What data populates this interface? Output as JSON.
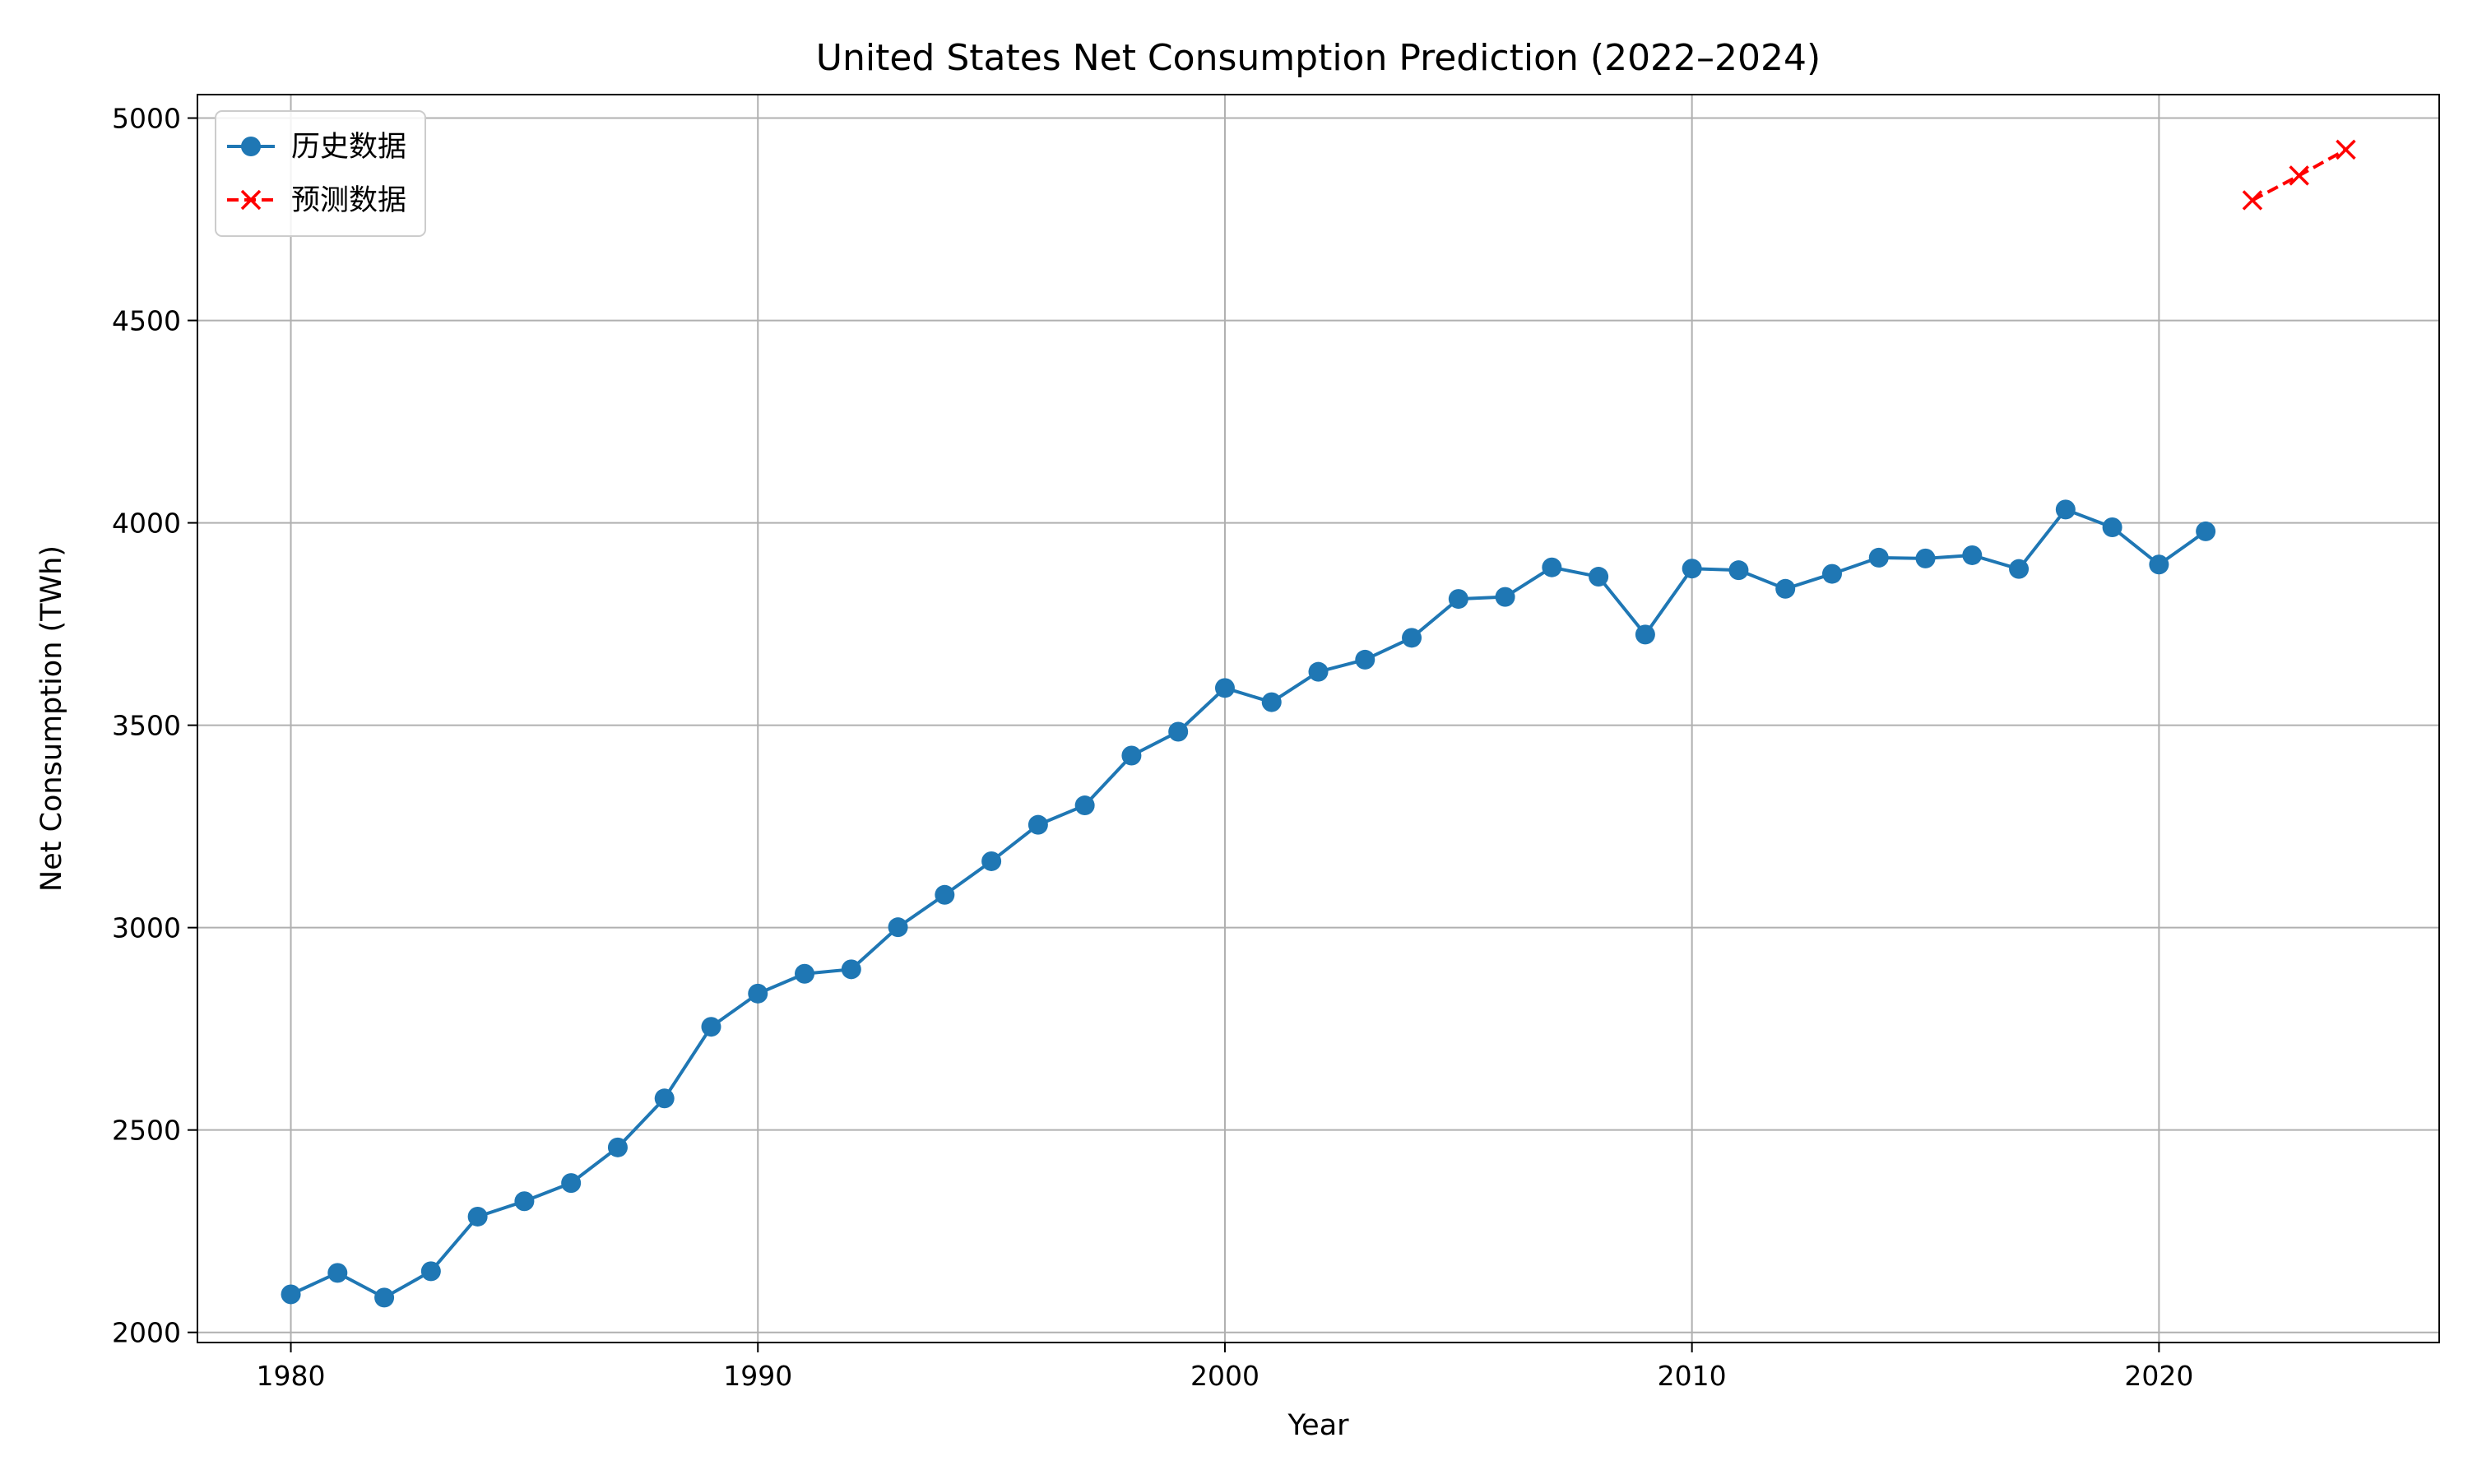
{
  "chart_data": {
    "type": "line",
    "title": "United States Net Consumption Prediction (2022–2024)",
    "xlabel": "Year",
    "ylabel": "Net Consumption (TWh)",
    "xlim": [
      1978,
      2026
    ],
    "ylim": [
      1975,
      5058
    ],
    "xticks": [
      1980,
      1990,
      2000,
      2010,
      2020
    ],
    "yticks": [
      2000,
      2500,
      3000,
      3500,
      4000,
      4500,
      5000
    ],
    "grid": true,
    "legend_position": "upper-left",
    "series": [
      {
        "name": "历史数据",
        "color": "#1f77b4",
        "marker": "circle",
        "line_style": "solid",
        "x": [
          1980,
          1981,
          1982,
          1983,
          1984,
          1985,
          1986,
          1987,
          1988,
          1989,
          1990,
          1991,
          1992,
          1993,
          1994,
          1995,
          1996,
          1997,
          1998,
          1999,
          2000,
          2001,
          2002,
          2003,
          2004,
          2005,
          2006,
          2007,
          2008,
          2009,
          2010,
          2011,
          2012,
          2013,
          2014,
          2015,
          2016,
          2017,
          2018,
          2019,
          2020,
          2021
        ],
        "y": [
          2094,
          2147,
          2086,
          2151,
          2286,
          2324,
          2369,
          2457,
          2578,
          2755,
          2837,
          2886,
          2897,
          3001,
          3081,
          3164,
          3254,
          3302,
          3425,
          3484,
          3592,
          3557,
          3632,
          3662,
          3716,
          3812,
          3817,
          3890,
          3867,
          3724,
          3887,
          3883,
          3837,
          3874,
          3914,
          3912,
          3920,
          3886,
          4033,
          3989,
          3897,
          3979
        ]
      },
      {
        "name": "预测数据",
        "color": "#ff0000",
        "marker": "x",
        "line_style": "dashed",
        "x": [
          2022,
          2023,
          2024
        ],
        "y": [
          4797,
          4858,
          4922
        ]
      }
    ]
  }
}
